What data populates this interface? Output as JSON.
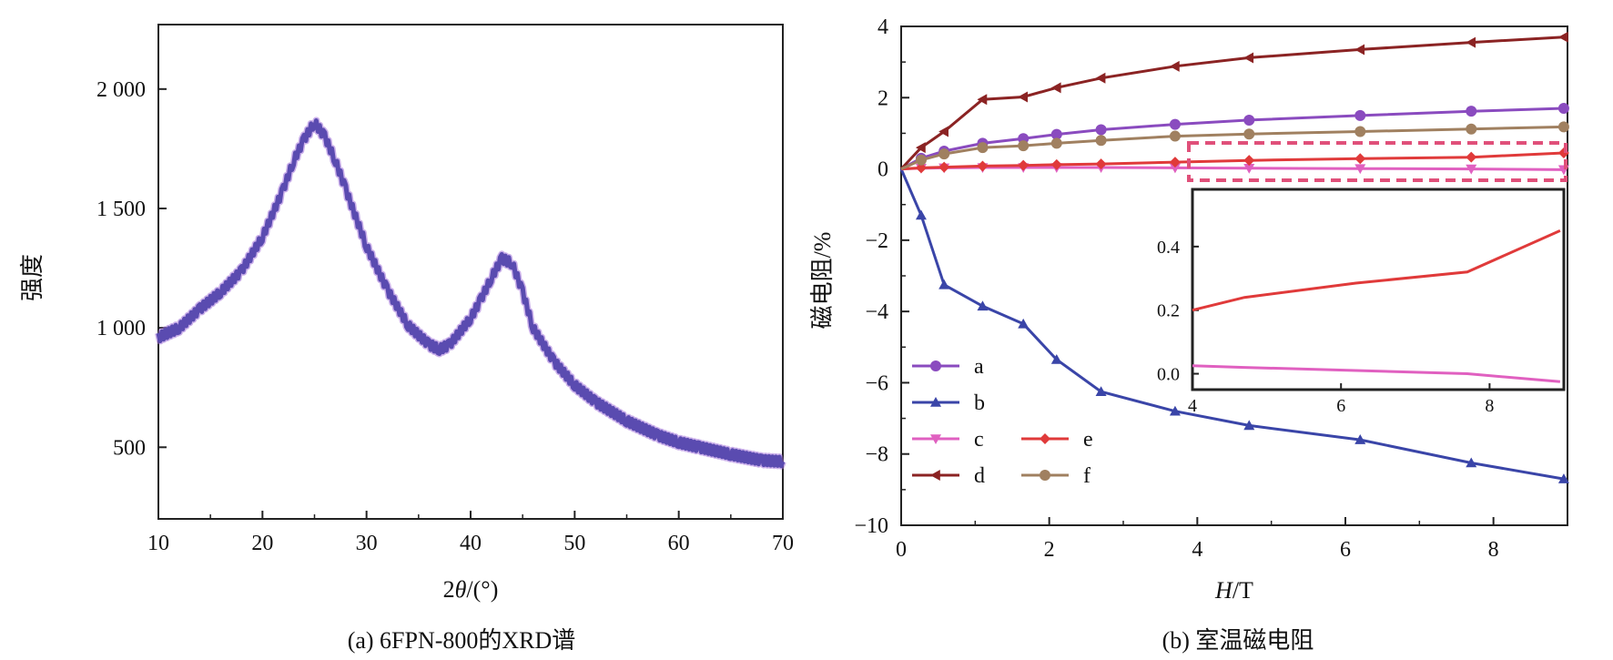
{
  "chart_data": [
    {
      "panel": "a",
      "type": "line",
      "caption": "(a) 6FPN-800的XRD谱",
      "xlabel_pre": "2",
      "xlabel_italic": "θ",
      "xlabel_post": "/(°)",
      "ylabel": "强度",
      "xlim": [
        10,
        70
      ],
      "ylim": [
        200,
        2270
      ],
      "xticks": [
        10,
        20,
        30,
        40,
        50,
        60,
        70
      ],
      "yticks": [
        500,
        1000,
        1500,
        2000
      ],
      "ytick_labels": [
        "500",
        "1 000",
        "1 500",
        "2 000"
      ],
      "color": "#5a4bb0",
      "series": [
        {
          "x": [
            10,
            12,
            14,
            16,
            18,
            20,
            22,
            23,
            24,
            25,
            26,
            27,
            28,
            30,
            32,
            34,
            36,
            37,
            38,
            40,
            41,
            42,
            43,
            44,
            45,
            46,
            48,
            50,
            52,
            55,
            58,
            60,
            62,
            65,
            68,
            70
          ],
          "y": [
            960,
            1000,
            1080,
            1150,
            1240,
            1380,
            1580,
            1700,
            1790,
            1860,
            1800,
            1700,
            1580,
            1340,
            1160,
            1010,
            930,
            910,
            930,
            1040,
            1120,
            1210,
            1290,
            1270,
            1150,
            1000,
            860,
            760,
            690,
            610,
            550,
            520,
            500,
            470,
            445,
            440
          ]
        }
      ]
    },
    {
      "panel": "b",
      "type": "line",
      "caption": "(b) 室温磁电阻",
      "xlabel_italic": "H",
      "xlabel_post": "/T",
      "ylabel": "磁电阻/%",
      "xlim": [
        0,
        9
      ],
      "ylim": [
        -10,
        4
      ],
      "xticks": [
        0,
        2,
        4,
        6,
        8
      ],
      "yticks": [
        -10,
        -8,
        -6,
        -4,
        -2,
        0,
        2,
        4
      ],
      "ytick_labels": [
        "−10",
        "−8",
        "−6",
        "−4",
        "−2",
        "0",
        "2",
        "4"
      ],
      "x": [
        0,
        0.27,
        0.58,
        1.1,
        1.65,
        2.1,
        2.7,
        3.7,
        4.7,
        6.2,
        7.7,
        8.95
      ],
      "series": [
        {
          "name": "a",
          "color": "#8a4bbf",
          "marker": "circle",
          "values": [
            0,
            0.3,
            0.5,
            0.72,
            0.85,
            0.97,
            1.1,
            1.25,
            1.37,
            1.5,
            1.62,
            1.7
          ]
        },
        {
          "name": "b",
          "color": "#3a45a8",
          "marker": "triangle-up",
          "values": [
            0,
            -1.3,
            -3.25,
            -3.85,
            -4.35,
            -5.35,
            -6.25,
            -6.8,
            -7.2,
            -7.6,
            -8.25,
            -8.7
          ]
        },
        {
          "name": "c",
          "color": "#e060c0",
          "marker": "triangle-down",
          "values": [
            0,
            0.02,
            0.03,
            0.04,
            0.04,
            0.04,
            0.04,
            0.03,
            0.02,
            0.01,
            0.0,
            -0.02
          ]
        },
        {
          "name": "d",
          "color": "#8b2323",
          "marker": "triangle-left",
          "values": [
            0,
            0.6,
            1.05,
            1.95,
            2.02,
            2.28,
            2.55,
            2.88,
            3.12,
            3.35,
            3.55,
            3.7
          ]
        },
        {
          "name": "e",
          "color": "#e03a3a",
          "marker": "diamond",
          "values": [
            0,
            0.03,
            0.05,
            0.08,
            0.1,
            0.12,
            0.14,
            0.19,
            0.24,
            0.29,
            0.33,
            0.45
          ]
        },
        {
          "name": "f",
          "color": "#a08060",
          "marker": "circle",
          "values": [
            0,
            0.25,
            0.42,
            0.6,
            0.65,
            0.72,
            0.8,
            0.92,
            0.98,
            1.05,
            1.12,
            1.18
          ]
        }
      ],
      "legend_layout": [
        [
          "a"
        ],
        [
          "b"
        ],
        [
          "c",
          "e"
        ],
        [
          "d",
          "f"
        ]
      ],
      "inset": {
        "xlim": [
          4,
          9
        ],
        "ylim": [
          -0.05,
          0.58
        ],
        "xticks": [
          4,
          6,
          8
        ],
        "yticks": [
          0.0,
          0.2,
          0.4
        ],
        "ytick_labels": [
          "0.0",
          "0.2",
          "0.4"
        ],
        "series": [
          {
            "name": "e",
            "color": "#e03a3a",
            "x": [
              4,
              4.7,
              6.2,
              7.7,
              8.95
            ],
            "values": [
              0.2,
              0.24,
              0.285,
              0.32,
              0.45
            ]
          },
          {
            "name": "c",
            "color": "#e060c0",
            "x": [
              4,
              4.7,
              6.2,
              7.7,
              8.95
            ],
            "values": [
              0.025,
              0.02,
              0.01,
              0.0,
              -0.025
            ]
          }
        ]
      }
    }
  ]
}
